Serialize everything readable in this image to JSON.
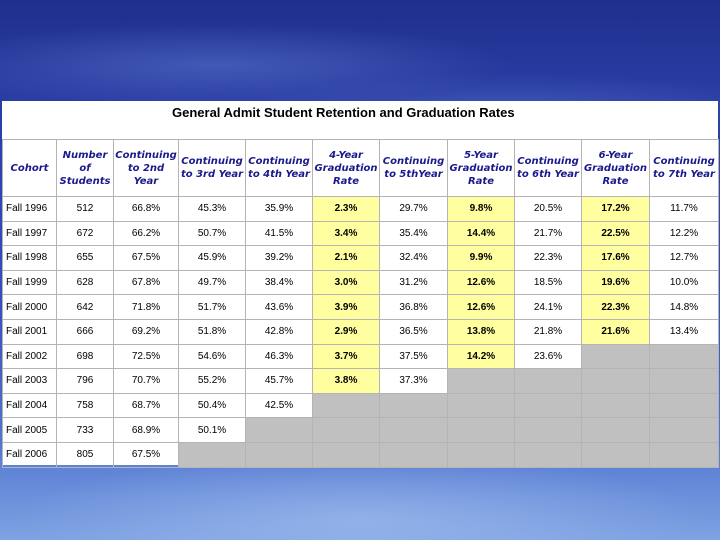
{
  "title": "General Admit Student Retention and Graduation Rates",
  "columns": [
    {
      "label": "Cohort",
      "highlight": false
    },
    {
      "label": "Number of Students",
      "highlight": false
    },
    {
      "label": "Continuing to 2nd Year",
      "highlight": false
    },
    {
      "label": "Continuing to 3rd Year",
      "highlight": false
    },
    {
      "label": "Continuing to 4th Year",
      "highlight": false
    },
    {
      "label": "4-Year Graduation Rate",
      "highlight": true
    },
    {
      "label": "Continuing to 5thYear",
      "highlight": false
    },
    {
      "label": "5-Year Graduation Rate",
      "highlight": true
    },
    {
      "label": "Continuing to 6th Year",
      "highlight": false
    },
    {
      "label": "6-Year Graduation Rate",
      "highlight": true
    },
    {
      "label": "Continuing to 7th Year",
      "highlight": false
    }
  ],
  "rows": [
    [
      "Fall 1996",
      "512",
      "66.8%",
      "45.3%",
      "35.9%",
      "2.3%",
      "29.7%",
      "9.8%",
      "20.5%",
      "17.2%",
      "11.7%"
    ],
    [
      "Fall 1997",
      "672",
      "66.2%",
      "50.7%",
      "41.5%",
      "3.4%",
      "35.4%",
      "14.4%",
      "21.7%",
      "22.5%",
      "12.2%"
    ],
    [
      "Fall 1998",
      "655",
      "67.5%",
      "45.9%",
      "39.2%",
      "2.1%",
      "32.4%",
      "9.9%",
      "22.3%",
      "17.6%",
      "12.7%"
    ],
    [
      "Fall 1999",
      "628",
      "67.8%",
      "49.7%",
      "38.4%",
      "3.0%",
      "31.2%",
      "12.6%",
      "18.5%",
      "19.6%",
      "10.0%"
    ],
    [
      "Fall 2000",
      "642",
      "71.8%",
      "51.7%",
      "43.6%",
      "3.9%",
      "36.8%",
      "12.6%",
      "24.1%",
      "22.3%",
      "14.8%"
    ],
    [
      "Fall 2001",
      "666",
      "69.2%",
      "51.8%",
      "42.8%",
      "2.9%",
      "36.5%",
      "13.8%",
      "21.8%",
      "21.6%",
      "13.4%"
    ],
    [
      "Fall 2002",
      "698",
      "72.5%",
      "54.6%",
      "46.3%",
      "3.7%",
      "37.5%",
      "14.2%",
      "23.6%",
      null,
      null
    ],
    [
      "Fall 2003",
      "796",
      "70.7%",
      "55.2%",
      "45.7%",
      "3.8%",
      "37.3%",
      null,
      null,
      null,
      null
    ],
    [
      "Fall 2004",
      "758",
      "68.7%",
      "50.4%",
      "42.5%",
      null,
      null,
      null,
      null,
      null,
      null
    ],
    [
      "Fall 2005",
      "733",
      "68.9%",
      "50.1%",
      null,
      null,
      null,
      null,
      null,
      null,
      null
    ],
    [
      "Fall 2006",
      "805",
      "67.5%",
      null,
      null,
      null,
      null,
      null,
      null,
      null,
      null
    ]
  ],
  "colors": {
    "highlight": "#ffffa0",
    "empty_cell": "#c0c0c0",
    "header_text": "#1a1a8c"
  }
}
